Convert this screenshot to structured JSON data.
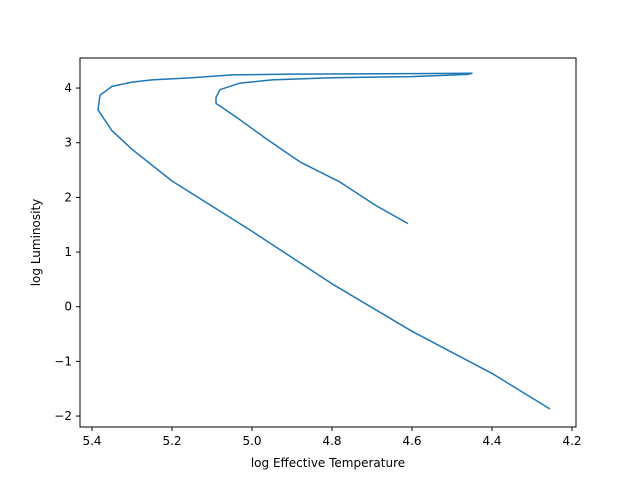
{
  "chart_data": {
    "type": "line",
    "title": "",
    "xlabel": "log Effective Temperature",
    "ylabel": "log Luminosity",
    "xlim": [
      5.43,
      4.19
    ],
    "ylim": [
      -2.2,
      4.55
    ],
    "x_inverted": true,
    "grid": false,
    "legend": "none",
    "x_ticks": [
      5.4,
      5.2,
      5.0,
      4.8,
      4.6,
      4.4,
      4.2
    ],
    "x_tick_labels": [
      "5.4",
      "5.2",
      "5.0",
      "4.8",
      "4.6",
      "4.4",
      "4.2"
    ],
    "y_ticks": [
      -2,
      -1,
      0,
      1,
      2,
      3,
      4
    ],
    "y_tick_labels": [
      "−2",
      "−1",
      "0",
      "1",
      "2",
      "3",
      "4"
    ],
    "series": [
      {
        "color": "#1f77b4",
        "points": [
          [
            4.61,
            1.52
          ],
          [
            4.69,
            1.85
          ],
          [
            4.78,
            2.28
          ],
          [
            4.88,
            2.65
          ],
          [
            4.96,
            3.05
          ],
          [
            5.03,
            3.42
          ],
          [
            5.07,
            3.62
          ],
          [
            5.09,
            3.72
          ],
          [
            5.09,
            3.83
          ],
          [
            5.08,
            3.97
          ],
          [
            5.03,
            4.09
          ],
          [
            4.95,
            4.15
          ],
          [
            4.8,
            4.19
          ],
          [
            4.6,
            4.21
          ],
          [
            4.46,
            4.25
          ],
          [
            4.45,
            4.27
          ],
          [
            4.6,
            4.265
          ],
          [
            4.9,
            4.255
          ],
          [
            5.05,
            4.24
          ],
          [
            5.15,
            4.19
          ],
          [
            5.25,
            4.15
          ],
          [
            5.3,
            4.11
          ],
          [
            5.35,
            4.03
          ],
          [
            5.38,
            3.87
          ],
          [
            5.385,
            3.6
          ],
          [
            5.35,
            3.22
          ],
          [
            5.3,
            2.88
          ],
          [
            5.2,
            2.3
          ],
          [
            5.0,
            1.38
          ],
          [
            4.8,
            0.42
          ],
          [
            4.6,
            -0.45
          ],
          [
            4.4,
            -1.22
          ],
          [
            4.255,
            -1.87
          ]
        ]
      }
    ]
  }
}
